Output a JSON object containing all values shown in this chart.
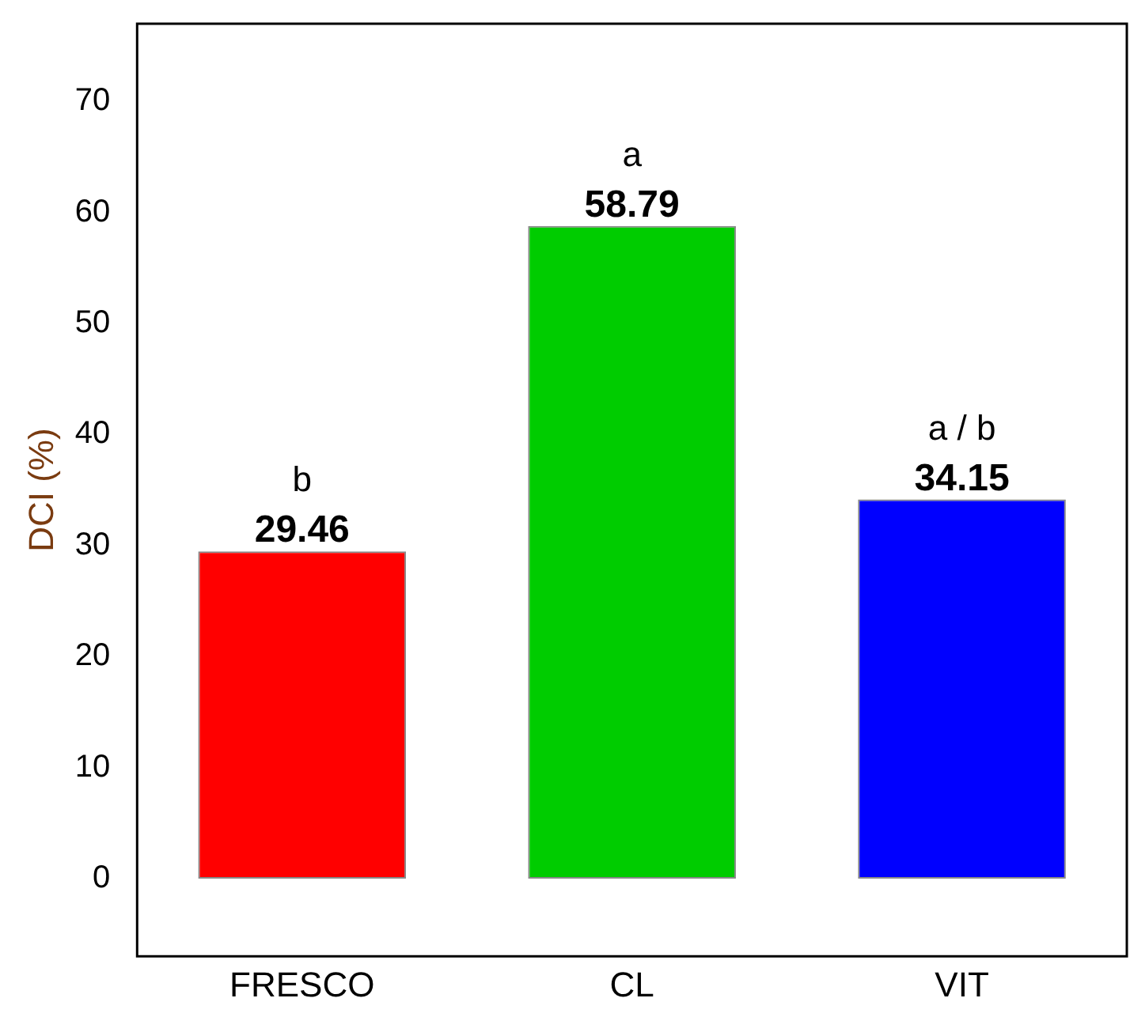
{
  "chart_data": {
    "type": "bar",
    "ylabel": "DCI (%)",
    "categories": [
      "FRESCO",
      "CL",
      "VIT"
    ],
    "values": [
      29.46,
      58.79,
      34.15
    ],
    "colors": [
      "#ff0000",
      "#00cc00",
      "#0000ff"
    ],
    "value_labels": [
      "29.46",
      "58.79",
      "34.15"
    ],
    "annotations": [
      "b",
      "a",
      "a / b"
    ],
    "ylim": [
      -7,
      77
    ],
    "yticks": [
      0,
      10,
      20,
      30,
      40,
      50,
      60,
      70
    ],
    "grid": false,
    "legend": false
  }
}
